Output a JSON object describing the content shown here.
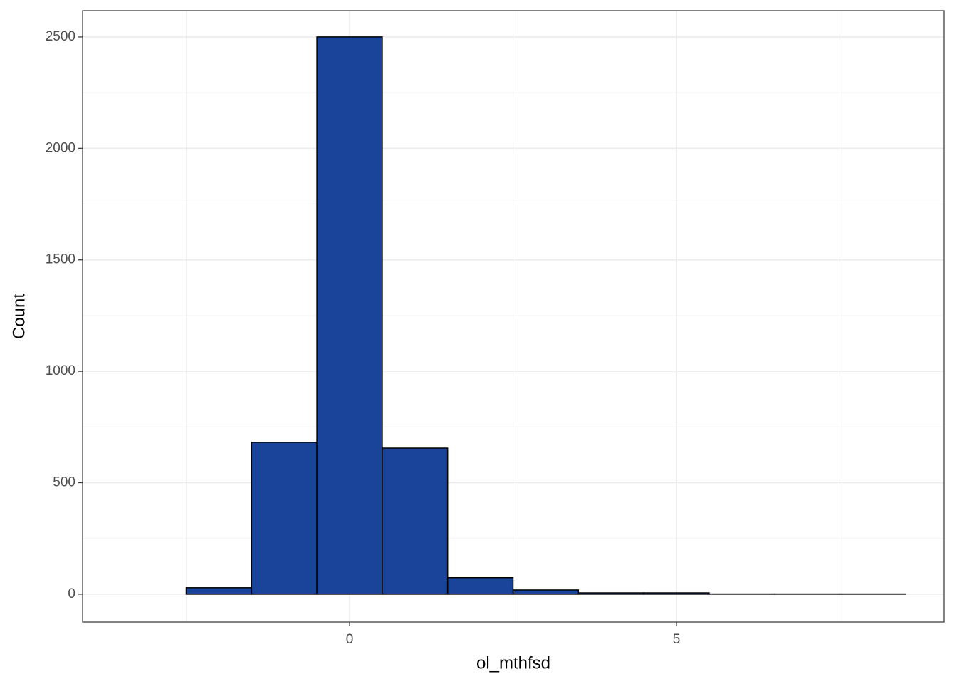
{
  "chart_data": {
    "type": "histogram",
    "x_label": "ol_mthfsd",
    "y_label": "Count",
    "bins": [
      -3.5,
      -2.5,
      -1.5,
      -0.5,
      0.5,
      1.5,
      2.5,
      3.5,
      4.5,
      5.5,
      6.5,
      7.5,
      8.5
    ],
    "values": [
      0,
      29,
      681,
      2500,
      655,
      74,
      19,
      6,
      6,
      1,
      1,
      1
    ],
    "color": "#1a4499",
    "xlim": [
      -4.085,
      9.096
    ],
    "ylim": [
      -125,
      2618
    ],
    "xticks": [
      0,
      5
    ],
    "yticks": [
      0,
      500,
      1000,
      1500,
      2000,
      2500
    ],
    "xminor": [
      -2.5,
      2.5,
      7.5
    ],
    "yminor": [
      250,
      750,
      1250,
      1750,
      2250
    ],
    "grid": true
  }
}
